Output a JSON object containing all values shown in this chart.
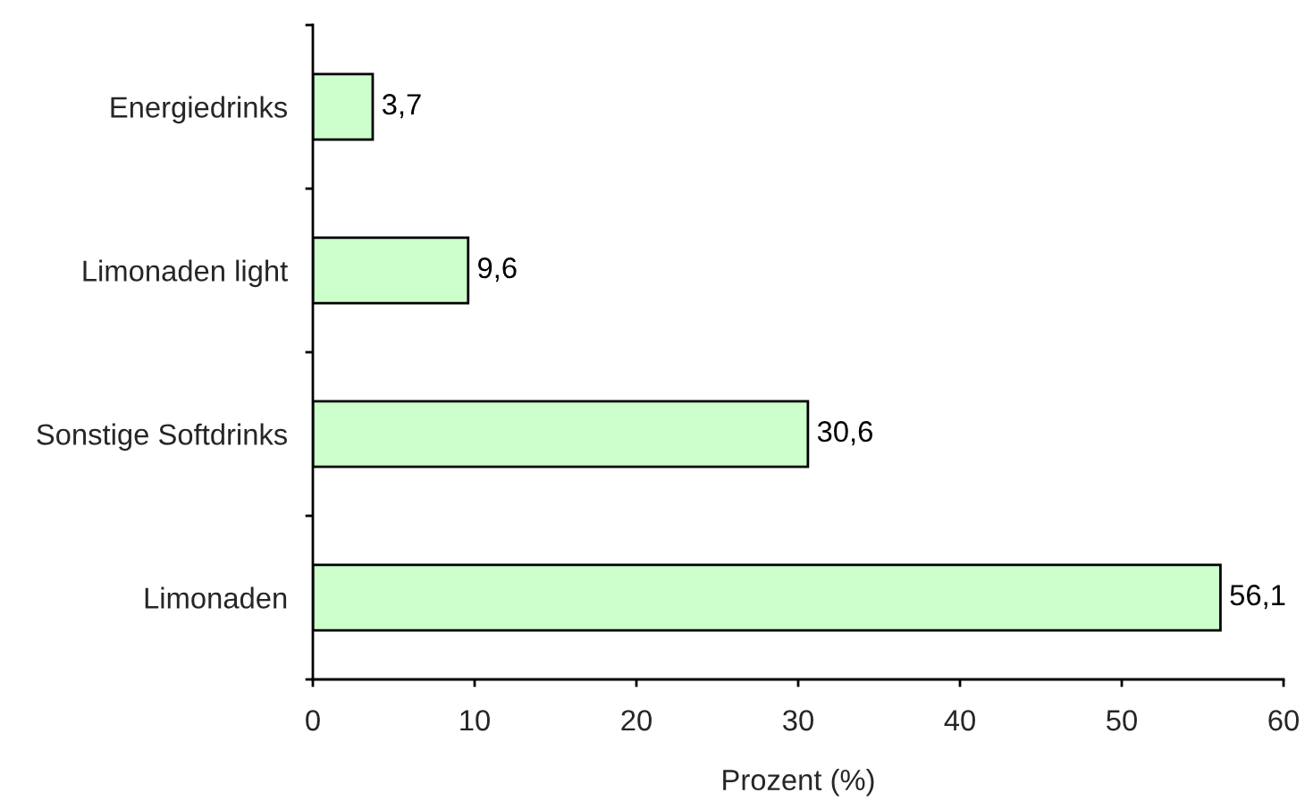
{
  "chart_data": {
    "type": "bar",
    "orientation": "horizontal",
    "categories": [
      "Energiedrinks",
      "Limonaden light",
      "Sonstige Softdrinks",
      "Limonaden"
    ],
    "values": [
      3.7,
      9.6,
      30.6,
      56.1
    ],
    "value_labels": [
      "3,7",
      "9,6",
      "30,6",
      "56,1"
    ],
    "color": "#ccffcc",
    "xlabel": "Prozent (%)",
    "xlim": [
      0,
      60
    ],
    "xticks": [
      0,
      10,
      20,
      30,
      40,
      50,
      60
    ]
  }
}
